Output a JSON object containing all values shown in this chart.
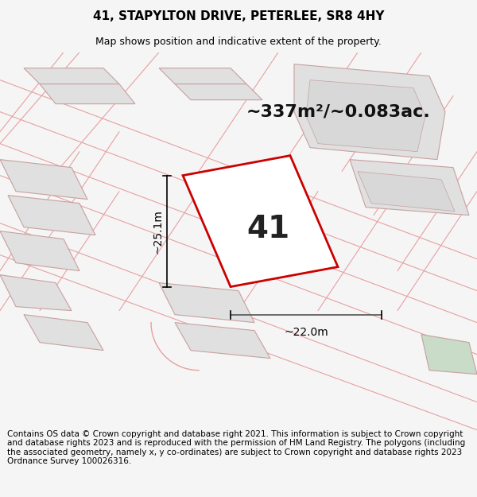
{
  "title": "41, STAPYLTON DRIVE, PETERLEE, SR8 4HY",
  "subtitle": "Map shows position and indicative extent of the property.",
  "area_text": "~337m²/~0.083ac.",
  "number_label": "41",
  "dim_width": "~22.0m",
  "dim_height": "~25.1m",
  "footer": "Contains OS data © Crown copyright and database right 2021. This information is subject to Crown copyright and database rights 2023 and is reproduced with the permission of HM Land Registry. The polygons (including the associated geometry, namely x, y co-ordinates) are subject to Crown copyright and database rights 2023 Ordnance Survey 100026316.",
  "bg_color": "#f5f5f5",
  "map_bg": "#ffffff",
  "plot_fill": "#ffffff",
  "plot_edge_color": "#cc0000",
  "neighbor_fill": "#e0e0e0",
  "neighbor_edge": "#c8a0a0",
  "road_line_color": "#e8a0a0",
  "green_fill": "#c8dcc8",
  "title_fontsize": 11,
  "subtitle_fontsize": 9,
  "footer_fontsize": 7.5,
  "area_fontsize": 16,
  "number_fontsize": 28,
  "dim_fontsize": 10
}
